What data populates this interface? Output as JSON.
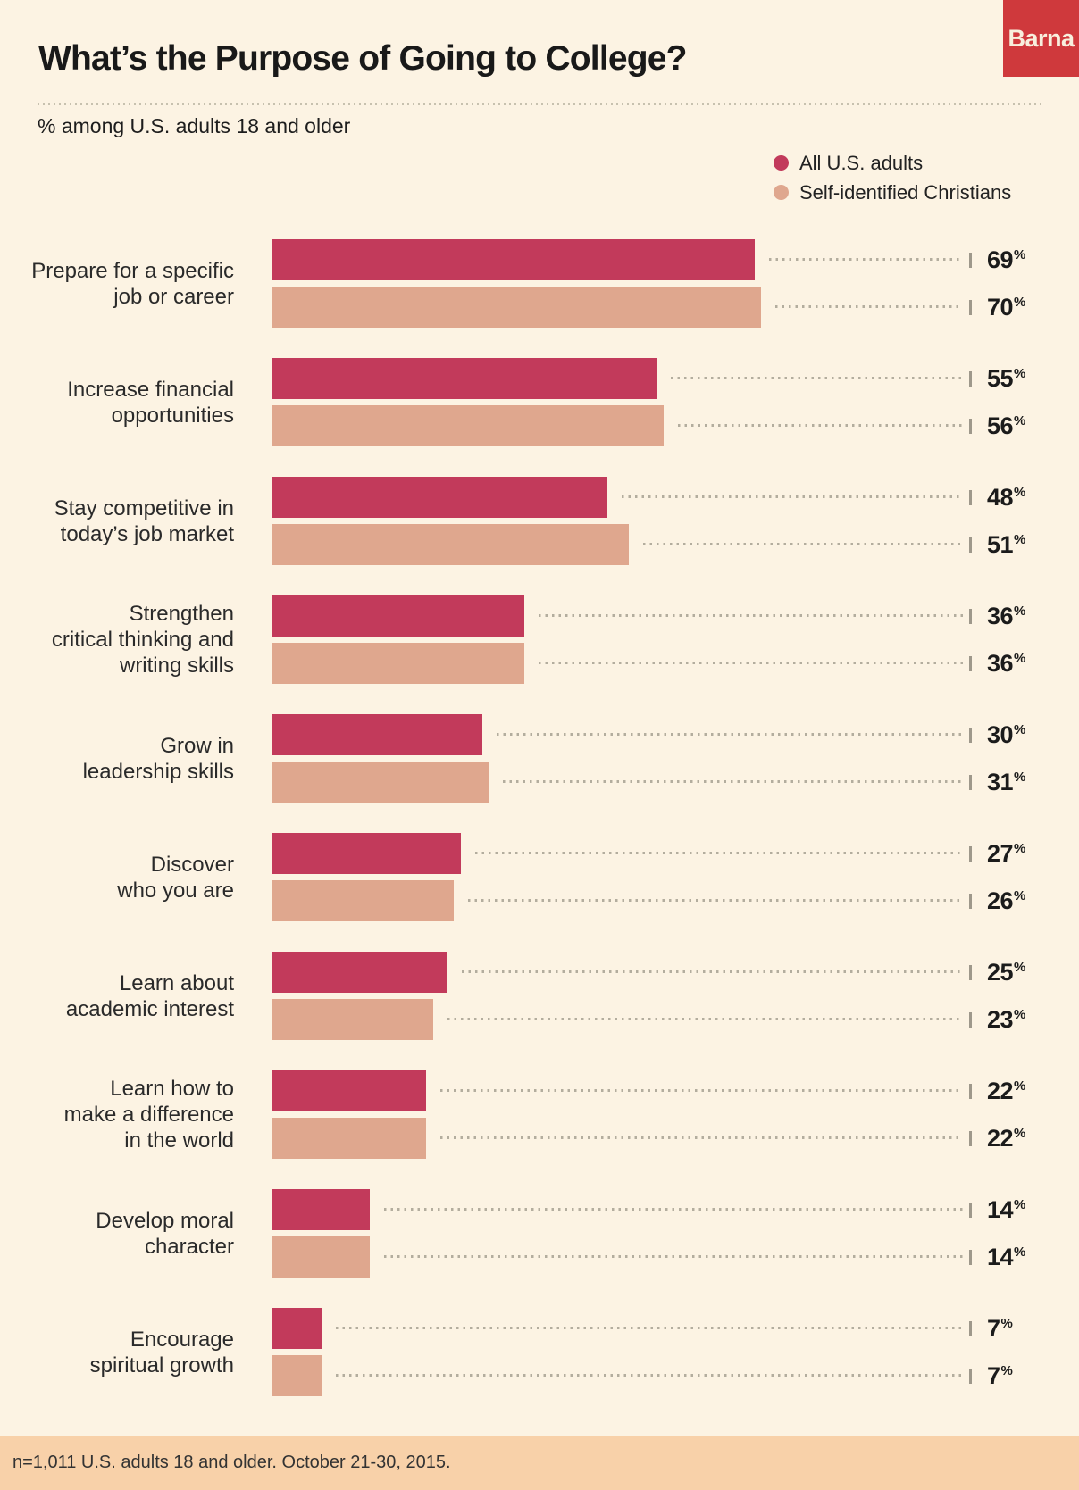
{
  "header": {
    "title": "What’s the Purpose of Going to College?",
    "subtitle": "% among U.S. adults 18 and older",
    "logo_text": "Barna"
  },
  "legend": [
    {
      "label": "All U.S. adults",
      "color": "#c23a5b"
    },
    {
      "label": "Self-identified Christians",
      "color": "#dfa78e"
    }
  ],
  "chart_data": {
    "type": "bar",
    "orientation": "horizontal",
    "title": "What’s the Purpose of Going to College?",
    "subtitle": "% among U.S. adults 18 and older",
    "xlim": [
      0,
      100
    ],
    "value_suffix": "%",
    "grid": false,
    "legend_position": "top-right",
    "categories": [
      "Prepare for a specific\njob or career",
      "Increase financial\nopportunities",
      "Stay competitive in\ntoday’s job market",
      "Strengthen\ncritical thinking and\nwriting skills",
      "Grow in\nleadership skills",
      "Discover\nwho you are",
      "Learn about\nacademic interest",
      "Learn how to\nmake a difference\nin the world",
      "Develop moral\ncharacter",
      "Encourage\nspiritual growth"
    ],
    "series": [
      {
        "name": "All U.S. adults",
        "color": "#c23a5b",
        "values": [
          69,
          55,
          48,
          36,
          30,
          27,
          25,
          22,
          14,
          7
        ]
      },
      {
        "name": "Self-identified Christians",
        "color": "#dfa78e",
        "values": [
          70,
          56,
          51,
          36,
          31,
          26,
          23,
          22,
          14,
          7
        ]
      }
    ]
  },
  "footer": {
    "note": "n=1,011 U.S. adults 18 and older. October 21-30, 2015."
  },
  "colors": {
    "background": "#fcf3e3",
    "logo_red": "#cf393c",
    "footer_band": "#f8d1a9",
    "leader_dots": "#b3ad9e",
    "tick_gray": "#9e988b"
  }
}
